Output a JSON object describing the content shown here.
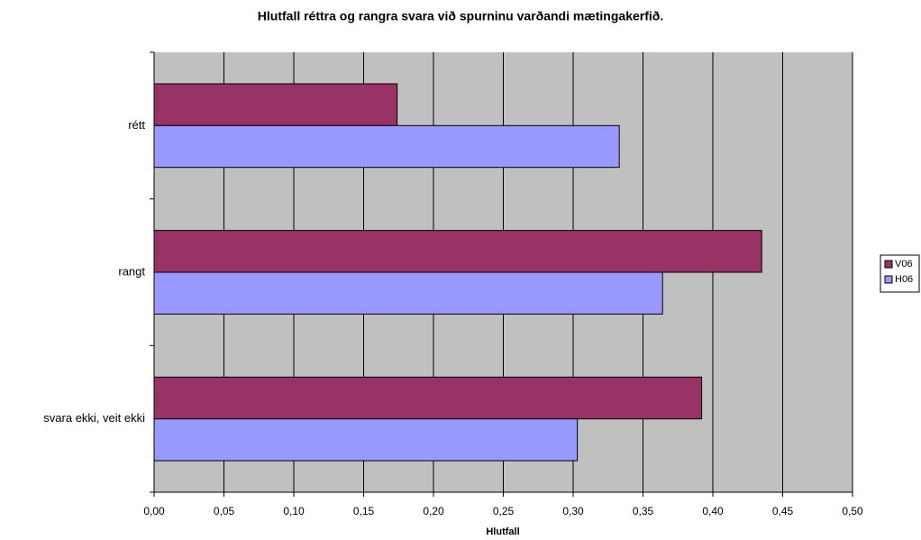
{
  "chart_data": {
    "type": "hbar",
    "title": "Hlutfall réttra og rangra svara við spurninu varðandi mætingakerfið.",
    "xlabel": "Hlutfall",
    "categories": [
      "rétt",
      "rangt",
      "svara ekki, veit ekki"
    ],
    "series": [
      {
        "name": "V06",
        "color": "#993366",
        "values": [
          0.174,
          0.435,
          0.392
        ]
      },
      {
        "name": "H06",
        "color": "#9999ff",
        "values": [
          0.333,
          0.364,
          0.303
        ]
      }
    ],
    "xlim": [
      0,
      0.5
    ],
    "xticks": [
      {
        "value": 0,
        "label": "0,00"
      },
      {
        "value": 0.05,
        "label": "0,05"
      },
      {
        "value": 0.1,
        "label": "0,10"
      },
      {
        "value": 0.15,
        "label": "0,15"
      },
      {
        "value": 0.2,
        "label": "0,20"
      },
      {
        "value": 0.25,
        "label": "0,25"
      },
      {
        "value": 0.3,
        "label": "0,30"
      },
      {
        "value": 0.35,
        "label": "0,35"
      },
      {
        "value": 0.4,
        "label": "0,40"
      },
      {
        "value": 0.45,
        "label": "0,45"
      },
      {
        "value": 0.5,
        "label": "0,50"
      }
    ],
    "grid": true,
    "legend": "right",
    "plot_background": "#c0c0c0"
  }
}
